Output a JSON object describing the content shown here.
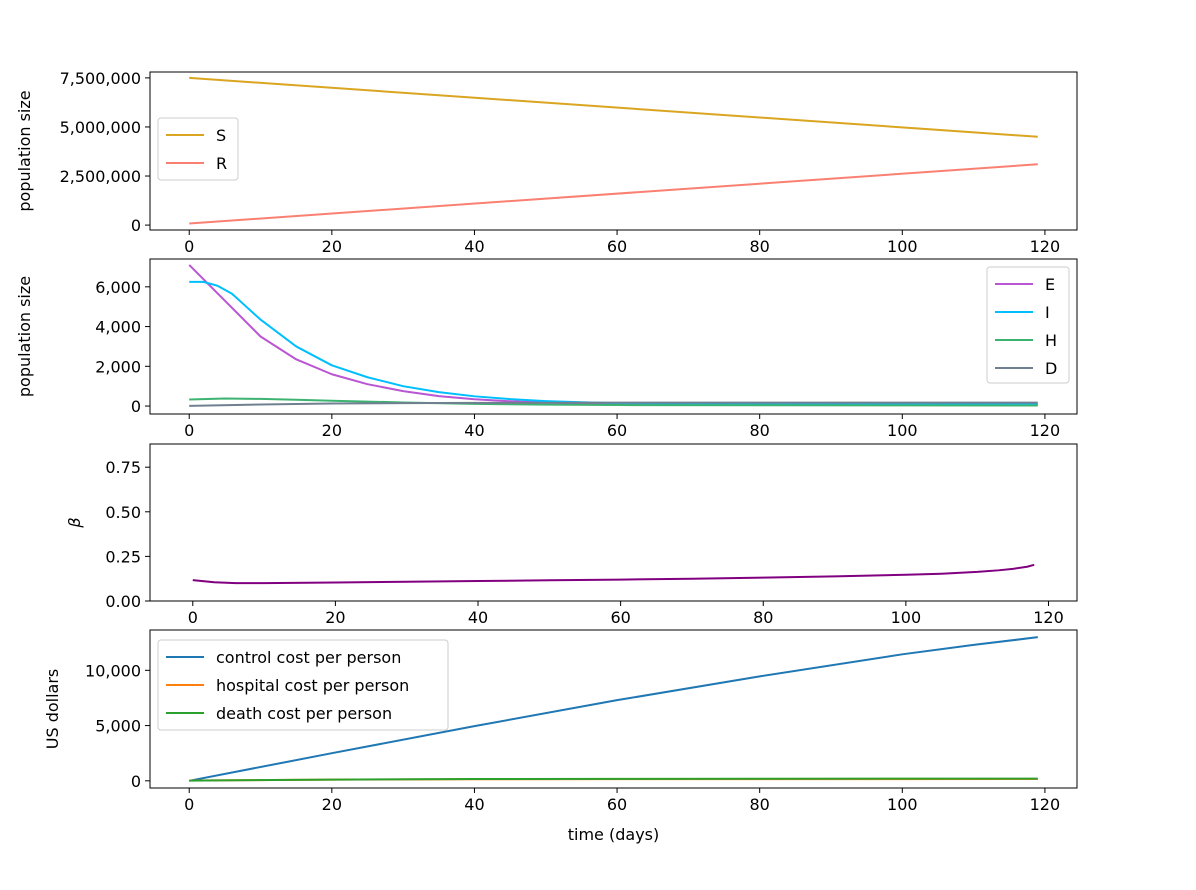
{
  "chart_data": [
    {
      "type": "line",
      "ylabel": "population size",
      "xlabel": "",
      "xlim": [
        -5.5,
        124.5
      ],
      "ylim": [
        -250000,
        7800000
      ],
      "xticks": [
        "0",
        "20",
        "40",
        "60",
        "80",
        "100",
        "120"
      ],
      "yticks": [
        "0",
        "2,500,000",
        "5,000,000",
        "7,500,000"
      ],
      "legend_position": "center-left",
      "series": [
        {
          "name": "S",
          "color": "#daa520",
          "x": [
            0,
            119
          ],
          "values": [
            7500000,
            4500000
          ]
        },
        {
          "name": "R",
          "color": "#fa8072",
          "x": [
            0,
            119
          ],
          "values": [
            80000,
            3100000
          ]
        }
      ]
    },
    {
      "type": "line",
      "ylabel": "population size",
      "xlabel": "",
      "xlim": [
        -5.5,
        124.5
      ],
      "ylim": [
        -400,
        7400
      ],
      "xticks": [
        "0",
        "20",
        "40",
        "60",
        "80",
        "100",
        "120"
      ],
      "yticks": [
        "0",
        "2,000",
        "4,000",
        "6,000"
      ],
      "legend_position": "upper-right",
      "series": [
        {
          "name": "E",
          "color": "#ba55d3",
          "x": [
            0,
            5,
            10,
            15,
            20,
            25,
            30,
            35,
            40,
            45,
            50,
            55,
            60,
            70,
            80,
            90,
            100,
            110,
            119
          ],
          "values": [
            7100,
            5300,
            3500,
            2350,
            1600,
            1100,
            750,
            500,
            340,
            240,
            170,
            130,
            110,
            90,
            85,
            82,
            80,
            80,
            80
          ]
        },
        {
          "name": "I",
          "color": "#00bfff",
          "x": [
            0,
            2,
            4,
            6,
            8,
            10,
            15,
            20,
            25,
            30,
            35,
            40,
            45,
            50,
            55,
            60,
            70,
            80,
            90,
            100,
            110,
            119
          ],
          "values": [
            6250,
            6250,
            6050,
            5650,
            5000,
            4350,
            3000,
            2050,
            1450,
            1000,
            700,
            490,
            350,
            250,
            190,
            150,
            110,
            100,
            95,
            90,
            90,
            90
          ]
        },
        {
          "name": "H",
          "color": "#3cb371",
          "x": [
            0,
            5,
            10,
            15,
            20,
            30,
            40,
            50,
            60,
            80,
            100,
            119
          ],
          "values": [
            330,
            380,
            360,
            320,
            270,
            180,
            110,
            70,
            50,
            40,
            35,
            30
          ]
        },
        {
          "name": "D",
          "color": "#708090",
          "x": [
            0,
            10,
            20,
            30,
            40,
            60,
            80,
            100,
            119
          ],
          "values": [
            10,
            80,
            130,
            150,
            160,
            170,
            170,
            175,
            175
          ]
        }
      ]
    },
    {
      "type": "line",
      "ylabel": "β",
      "xlabel": "",
      "xlim": [
        -6,
        124
      ],
      "ylim": [
        0,
        0.88
      ],
      "xticks": [
        "0",
        "20",
        "40",
        "60",
        "80",
        "100",
        "120"
      ],
      "yticks": [
        "0.00",
        "0.25",
        "0.50",
        "0.75"
      ],
      "legend_position": "",
      "series": [
        {
          "name": "beta",
          "color": "#800080",
          "x": [
            0,
            3,
            6,
            10,
            20,
            30,
            40,
            50,
            60,
            70,
            80,
            90,
            100,
            105,
            110,
            113,
            115,
            117,
            118
          ],
          "values": [
            0.117,
            0.105,
            0.1,
            0.1,
            0.104,
            0.108,
            0.112,
            0.116,
            0.12,
            0.125,
            0.131,
            0.138,
            0.147,
            0.153,
            0.163,
            0.172,
            0.18,
            0.192,
            0.203
          ]
        }
      ]
    },
    {
      "type": "line",
      "ylabel": "US dollars",
      "xlabel": "time (days)",
      "xlim": [
        -5.5,
        124.5
      ],
      "ylim": [
        -650,
        13650
      ],
      "xticks": [
        "0",
        "20",
        "40",
        "60",
        "80",
        "100",
        "120"
      ],
      "yticks": [
        "0",
        "5,000",
        "10,000"
      ],
      "legend_position": "upper-left",
      "series": [
        {
          "name": "control cost per person",
          "color": "#1f77b4",
          "x": [
            0,
            20,
            40,
            60,
            80,
            100,
            110,
            119
          ],
          "values": [
            0,
            2500,
            4950,
            7300,
            9450,
            11450,
            12300,
            13000
          ]
        },
        {
          "name": "hospital cost per person",
          "color": "#ff7f0e",
          "x": [
            0,
            20,
            40,
            60,
            80,
            100,
            119
          ],
          "values": [
            30,
            110,
            140,
            150,
            155,
            158,
            160
          ]
        },
        {
          "name": "death cost per person",
          "color": "#2ca02c",
          "x": [
            0,
            20,
            40,
            60,
            80,
            100,
            119
          ],
          "values": [
            20,
            110,
            160,
            180,
            190,
            195,
            200
          ]
        }
      ]
    }
  ]
}
